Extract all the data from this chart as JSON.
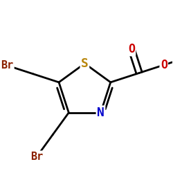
{
  "background_color": "#ffffff",
  "atom_colors": {
    "S": "#b8860b",
    "N": "#0000cc",
    "O": "#cc0000",
    "Br": "#8b2000"
  },
  "bond_color": "#000000",
  "bond_width": 2.0,
  "figsize": [
    2.5,
    2.5
  ],
  "dpi": 100
}
